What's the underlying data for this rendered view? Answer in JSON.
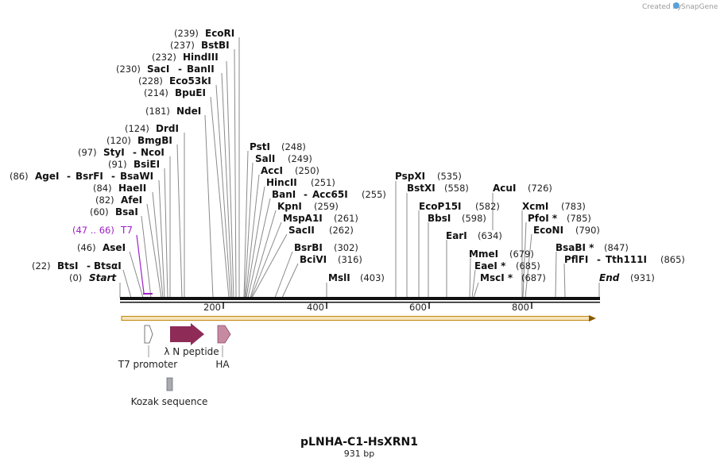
{
  "brand": {
    "created_by": "Created by",
    "app": "SnapGene"
  },
  "plasmid": {
    "name": "pLNHA-C1-HsXRN1",
    "size_label": "931 bp"
  },
  "ruler_ticks": [
    "200",
    "400",
    "600",
    "800"
  ],
  "sites": [
    {
      "pos": "(239)",
      "name": "EcoRI"
    },
    {
      "pos": "(237)",
      "name": "BstBI"
    },
    {
      "pos": "(232)",
      "name": "HindIII"
    },
    {
      "pos": "(230)",
      "name": "SacI",
      "name2": "BanII"
    },
    {
      "pos": "(228)",
      "name": "Eco53kI"
    },
    {
      "pos": "(214)",
      "name": "BpuEI"
    },
    {
      "pos": "(181)",
      "name": "NdeI"
    },
    {
      "pos": "(124)",
      "name": "DrdI"
    },
    {
      "pos": "(120)",
      "name": "BmgBI"
    },
    {
      "pos": "(97)",
      "name": "StyI",
      "name2": "NcoI"
    },
    {
      "pos": "(91)",
      "name": "BsiEI"
    },
    {
      "pos": "(86)",
      "name": "AgeI",
      "name2": "BsrFI",
      "name3": "BsaWI"
    },
    {
      "pos": "(84)",
      "name": "HaeII"
    },
    {
      "pos": "(82)",
      "name": "AfeI"
    },
    {
      "pos": "(60)",
      "name": "BsaI"
    },
    {
      "pos": "(46)",
      "name": "AseI"
    },
    {
      "pos": "(22)",
      "name": "BtsI",
      "name2": "BtsαI"
    },
    {
      "pos": "(0)",
      "name": "Start"
    },
    {
      "pos": "(248)",
      "name": "PstI"
    },
    {
      "pos": "(249)",
      "name": "SalI"
    },
    {
      "pos": "(250)",
      "name": "AccI"
    },
    {
      "pos": "(251)",
      "name": "HincII"
    },
    {
      "pos": "(255)",
      "name": "BanI",
      "name2": "Acc65I"
    },
    {
      "pos": "(259)",
      "name": "KpnI"
    },
    {
      "pos": "(261)",
      "name": "MspA1I"
    },
    {
      "pos": "(262)",
      "name": "SacII"
    },
    {
      "pos": "(302)",
      "name": "BsrBI"
    },
    {
      "pos": "(316)",
      "name": "BciVI"
    },
    {
      "pos": "(403)",
      "name": "MslI"
    },
    {
      "pos": "(535)",
      "name": "PspXI"
    },
    {
      "pos": "(558)",
      "name": "BstXI"
    },
    {
      "pos": "(582)",
      "name": "EcoP15I"
    },
    {
      "pos": "(598)",
      "name": "BbsI"
    },
    {
      "pos": "(634)",
      "name": "EarI"
    },
    {
      "pos": "(679)",
      "name": "MmeI"
    },
    {
      "pos": "(685)",
      "name": "EaeI *"
    },
    {
      "pos": "(687)",
      "name": "MscI *"
    },
    {
      "pos": "(726)",
      "name": "AcuI"
    },
    {
      "pos": "(783)",
      "name": "XcmI"
    },
    {
      "pos": "(785)",
      "name": "PfoI *"
    },
    {
      "pos": "(790)",
      "name": "EcoNI"
    },
    {
      "pos": "(847)",
      "name": "BsaBI *"
    },
    {
      "pos": "(865)",
      "name": "PflFI",
      "name2": "Tth111I"
    },
    {
      "pos": "(931)",
      "name": "End"
    }
  ],
  "primer": {
    "range": "(47 .. 66)",
    "name": "T7"
  },
  "features": {
    "t7_promoter": "T7 promoter",
    "lambda_n": "λ N peptide",
    "ha": "HA",
    "kozak": "Kozak sequence"
  },
  "colors": {
    "primer": "#a020c8",
    "orf_fill": "#f5e6c0",
    "orf_stroke": "#c89020",
    "lambda_fill": "#8e2b57",
    "ha_fill": "#c78aa3",
    "kozak_fill": "#a9abb0"
  }
}
